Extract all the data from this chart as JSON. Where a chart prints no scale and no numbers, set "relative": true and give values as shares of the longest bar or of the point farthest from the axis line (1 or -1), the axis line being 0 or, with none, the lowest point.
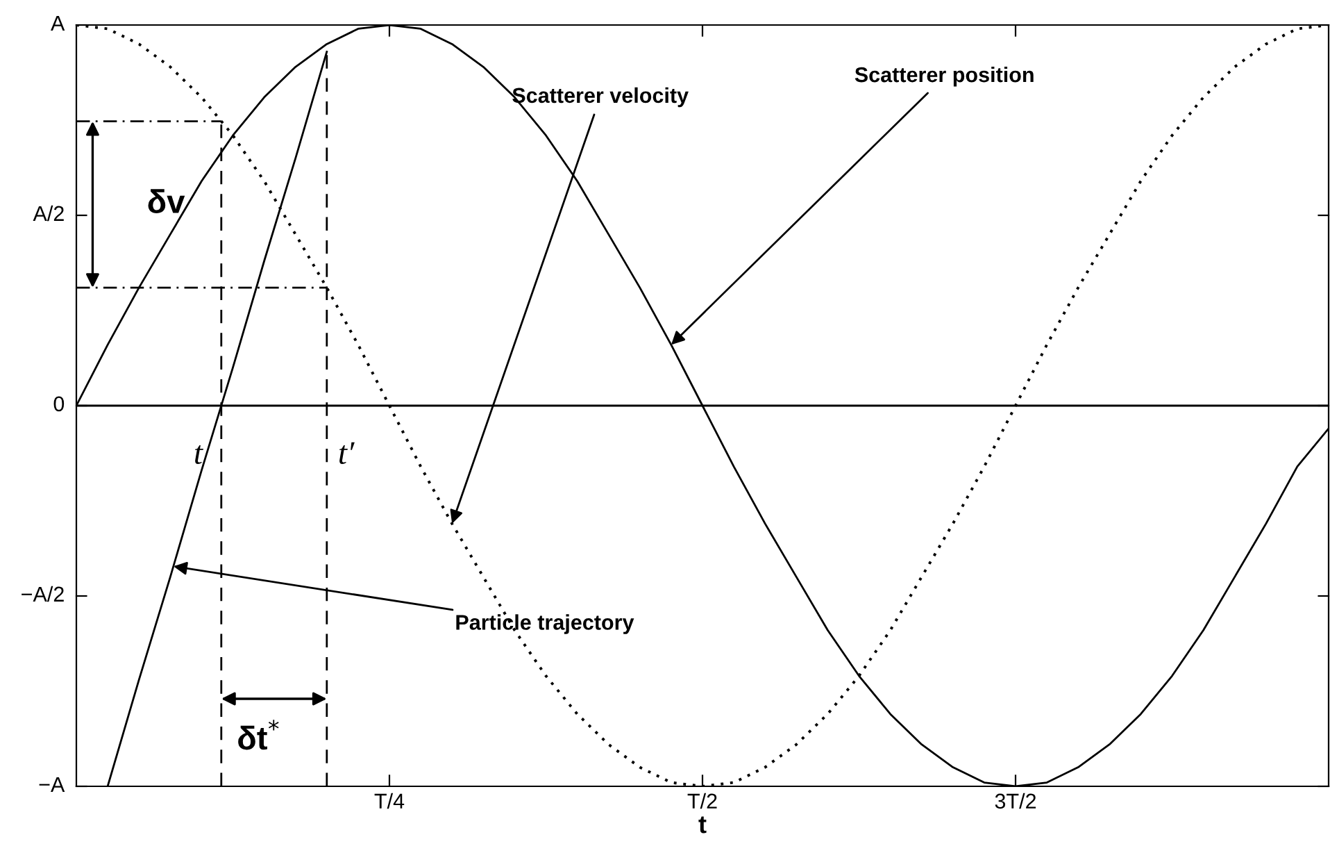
{
  "chart_data": {
    "type": "line",
    "xlabel": "t",
    "relative": true,
    "categories": [
      null,
      null,
      null,
      null,
      null,
      null,
      null,
      null,
      null,
      null,
      "T/4",
      null,
      null,
      null,
      null,
      null,
      null,
      null,
      null,
      null,
      "T/2",
      null,
      null,
      null,
      null,
      null,
      null,
      null,
      null,
      null,
      "3T/2",
      null,
      null,
      null,
      null,
      null,
      null,
      null,
      null,
      null,
      null
    ],
    "series": [
      {
        "color": "#000000",
        "line_style": "solid",
        "values": [
          0,
          0.16,
          0.31,
          0.45,
          0.59,
          0.71,
          0.81,
          0.89,
          0.95,
          0.99,
          1,
          0.99,
          0.95,
          0.89,
          0.81,
          0.71,
          0.59,
          0.45,
          0.31,
          0.16,
          0,
          -0.16,
          -0.31,
          -0.45,
          -0.59,
          -0.71,
          -0.81,
          -0.89,
          -0.95,
          -0.99,
          -1,
          -0.99,
          -0.95,
          -0.89,
          -0.81,
          -0.71,
          -0.59,
          -0.45,
          -0.31,
          -0.16,
          -0.06
        ]
      },
      {
        "color": "#000000",
        "line_style": "dotted",
        "values": [
          1,
          0.99,
          0.95,
          0.89,
          0.81,
          0.71,
          0.59,
          0.45,
          0.31,
          0.16,
          0,
          -0.16,
          -0.31,
          -0.45,
          -0.59,
          -0.71,
          -0.81,
          -0.89,
          -0.95,
          -0.99,
          -1,
          -0.99,
          -0.95,
          -0.89,
          -0.81,
          -0.71,
          -0.59,
          -0.45,
          -0.31,
          -0.16,
          0,
          0.16,
          0.31,
          0.45,
          0.59,
          0.71,
          0.81,
          0.89,
          0.95,
          0.99,
          1
        ]
      },
      {
        "color": "#000000",
        "line_style": "solid",
        "values": [
          null,
          -1,
          -0.72,
          -0.45,
          -0.17,
          0.1,
          0.38,
          0.65,
          0.93,
          null,
          null,
          null,
          null,
          null,
          null,
          null,
          null,
          null,
          null,
          null,
          null,
          null,
          null,
          null,
          null,
          null,
          null,
          null,
          null,
          null,
          null,
          null,
          null,
          null,
          null,
          null,
          null,
          null,
          null,
          null,
          null
        ]
      }
    ],
    "annotations": [
      "Scatterer position",
      "Scatterer velocity",
      "Particle trajectory",
      "t",
      "t′",
      "δv",
      "δt$^{*}$",
      "A",
      "A/2",
      "0",
      "−A/2",
      "−A"
    ],
    "ref_lines": [
      {
        "axis": "y",
        "value": 0,
        "label": null,
        "color": "#000000",
        "line_style": "solid"
      }
    ],
    "legend": false
  }
}
